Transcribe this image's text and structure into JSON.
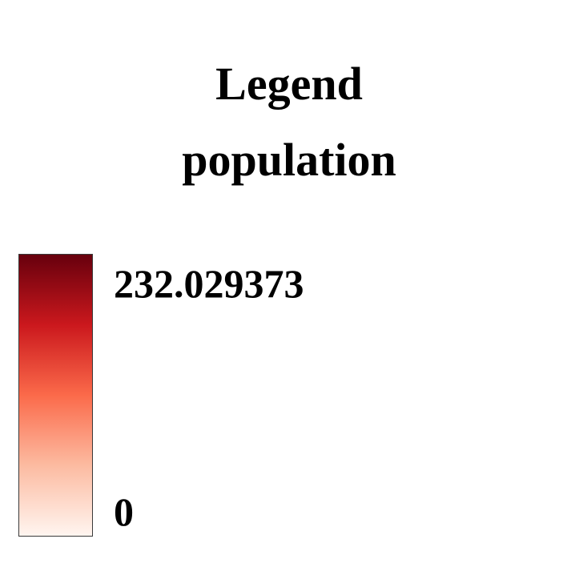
{
  "legend": {
    "title": "Legend",
    "variable": "population",
    "max_label": "232.029373",
    "min_label": "0",
    "max_value": 232.029373,
    "min_value": 0,
    "colormap": "Reds",
    "gradient_colors": [
      "#67000d",
      "#cb181d",
      "#fb6a4a",
      "#fcbba1",
      "#fff5f0"
    ]
  }
}
